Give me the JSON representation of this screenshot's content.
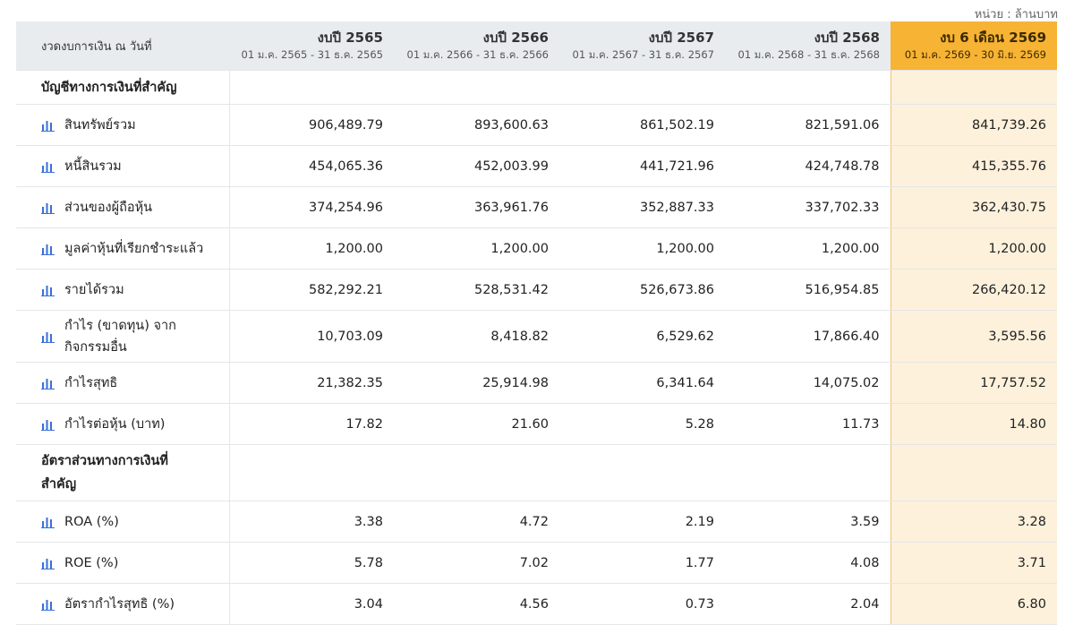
{
  "unit_label": "หน่วย : ล้านบาท",
  "header": {
    "first_col": "งวดงบการเงิน ณ วันที่",
    "periods": [
      {
        "year": "งบปี 2565",
        "range": "01 ม.ค. 2565 - 31 ธ.ค. 2565"
      },
      {
        "year": "งบปี 2566",
        "range": "01 ม.ค. 2566 - 31 ธ.ค. 2566"
      },
      {
        "year": "งบปี 2567",
        "range": "01 ม.ค. 2567 - 31 ธ.ค. 2567"
      },
      {
        "year": "งบปี 2568",
        "range": "01 ม.ค. 2568 - 31 ธ.ค. 2568"
      },
      {
        "year": "งบ 6 เดือน 2569",
        "range": "01 ม.ค. 2569 - 30 มิ.ย. 2569"
      }
    ]
  },
  "sections": {
    "accounts": "บัญชีทางการเงินที่สำคัญ",
    "ratios": "อัตราส่วนทางการเงินที่สำคัญ"
  },
  "rows": [
    {
      "label": "สินทรัพย์รวม",
      "values": [
        "906,489.79",
        "893,600.63",
        "861,502.19",
        "821,591.06",
        "841,739.26"
      ]
    },
    {
      "label": "หนี้สินรวม",
      "values": [
        "454,065.36",
        "452,003.99",
        "441,721.96",
        "424,748.78",
        "415,355.76"
      ]
    },
    {
      "label": "ส่วนของผู้ถือหุ้น",
      "values": [
        "374,254.96",
        "363,961.76",
        "352,887.33",
        "337,702.33",
        "362,430.75"
      ]
    },
    {
      "label": "มูลค่าหุ้นที่เรียกชำระแล้ว",
      "values": [
        "1,200.00",
        "1,200.00",
        "1,200.00",
        "1,200.00",
        "1,200.00"
      ]
    },
    {
      "label": "รายได้รวม",
      "values": [
        "582,292.21",
        "528,531.42",
        "526,673.86",
        "516,954.85",
        "266,420.12"
      ]
    },
    {
      "label": "กำไร (ขาดทุน) จากกิจกรรมอื่น",
      "values": [
        "10,703.09",
        "8,418.82",
        "6,529.62",
        "17,866.40",
        "3,595.56"
      ]
    },
    {
      "label": "กำไรสุทธิ",
      "values": [
        "21,382.35",
        "25,914.98",
        "6,341.64",
        "14,075.02",
        "17,757.52"
      ]
    },
    {
      "label": "กำไรต่อหุ้น (บาท)",
      "values": [
        "17.82",
        "21.60",
        "5.28",
        "11.73",
        "14.80"
      ]
    }
  ],
  "ratio_rows": [
    {
      "label": "ROA (%)",
      "values": [
        "3.38",
        "4.72",
        "2.19",
        "3.59",
        "3.28"
      ]
    },
    {
      "label": "ROE (%)",
      "values": [
        "5.78",
        "7.02",
        "1.77",
        "4.08",
        "3.71"
      ]
    },
    {
      "label": "อัตรากำไรสุทธิ (%)",
      "values": [
        "3.04",
        "4.56",
        "0.73",
        "2.04",
        "6.80"
      ]
    }
  ],
  "colors": {
    "highlight_header": "#f7b334",
    "highlight_cell": "#fdf1dc",
    "icon": "#3a6fd8"
  },
  "icons": {
    "row_icon": "bar-chart-icon"
  }
}
